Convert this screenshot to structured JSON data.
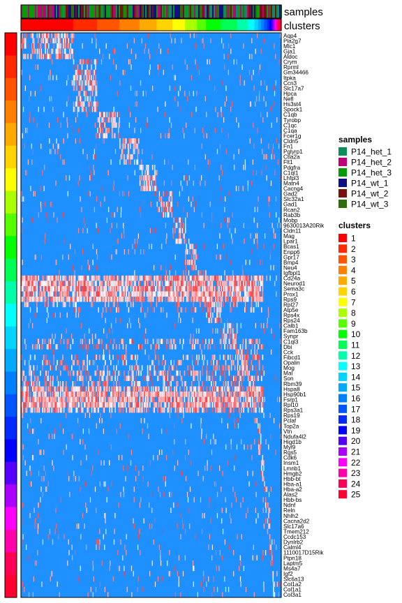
{
  "chart_data": {
    "type": "heatmap",
    "title": "",
    "xlabel": "",
    "ylabel": "",
    "annotations": {
      "samples_label": "samples",
      "clusters_label": "clusters"
    },
    "cluster_colors": [
      "#FF0000",
      "#FF2A00",
      "#FF5500",
      "#FF8000",
      "#FFAA00",
      "#FFD400",
      "#FFFF00",
      "#AAFF00",
      "#55FF00",
      "#00FF00",
      "#00FF55",
      "#00FFAA",
      "#00FFFF",
      "#00D4FF",
      "#00AAFF",
      "#0080FF",
      "#0055FF",
      "#002AFF",
      "#0000FF",
      "#5500FF",
      "#AA00FF",
      "#FF00FF",
      "#FF00AA",
      "#FF0055",
      "#FF0030"
    ],
    "sample_colors": {
      "P14_het_1": "#0E8C5C",
      "P14_het_2": "#C0007A",
      "P14_het_3": "#079C07",
      "P14_wt_1": "#0F0F86",
      "P14_wt_2": "#7A0F0F",
      "P14_wt_3": "#2F6B07"
    },
    "cluster_widths": [
      70,
      32,
      30,
      27,
      23,
      21,
      17,
      16,
      12,
      20,
      22,
      14,
      9,
      5,
      4,
      4,
      4,
      3,
      3,
      2,
      2,
      2,
      2,
      2,
      3
    ],
    "gene_groups": [
      [
        "Aqp4",
        "Pla2g7",
        "Mlc1",
        "Gja1",
        "Aldoc"
      ],
      [
        "Crym",
        "Rprml",
        "Gm34466",
        "Itpka",
        "Ccn3",
        "Slc17a7",
        "Hpca",
        "Nefl",
        "Hs3st4",
        "Spock1"
      ],
      [
        "C1qb",
        "Tyrobp",
        "C1qc",
        "C1qa",
        "Fcer1g"
      ],
      [
        "Cldn5",
        "Fn1",
        "Pglyrp1",
        "Ctla2a",
        "Flt1"
      ],
      [
        "Pdgfra",
        "C1ql1",
        "Lhfpl3",
        "Matn4",
        "Cacng4"
      ],
      [
        "Gad2",
        "Slc32a1",
        "Gad1",
        "Rcan2",
        "Rab3b"
      ],
      [
        "Mobp",
        "9630013A20Rik",
        "Cldn11",
        "Mag",
        "Lpar1"
      ],
      [
        "Bcas1",
        "Enpp6",
        "Gpr17",
        "Bmp4",
        "Neu4"
      ],
      [
        "Igfbpl1",
        "Cd24a",
        "Neurod1",
        "Sema3c",
        "Prox1"
      ],
      [
        "Rps9",
        "Rpl27",
        "Atp5e",
        "Rps4x",
        "Rps24"
      ],
      [
        "Calb1",
        "Fam163b",
        "Synpr",
        "C1ql3",
        "Dbi"
      ],
      [
        "Cck",
        "Fibcd1",
        "Opalin",
        "Mog",
        "Mal"
      ],
      [
        "Son",
        "Rbm39",
        "Hspa8",
        "Hsp90b1",
        "Fsrp1"
      ],
      [
        "Rpl10",
        "Rps3a1",
        "Rps19",
        "Pclaf",
        "Top2a"
      ],
      [
        "Vtn",
        "Ndufa4l2",
        "Higd1b",
        "Myl9",
        "Rgs5"
      ],
      [
        "Cdk6",
        "Insm1",
        "Lmnb1",
        "Hmgb2",
        "Hbb-bt"
      ],
      [
        "Hba-a1",
        "Hba-a2",
        "Alas2",
        "Hbb-bs",
        "Ndnf"
      ],
      [
        "Reln",
        "Nhlh2",
        "Cacna2d2",
        "Slc17a6",
        "Tmem212"
      ],
      [
        "Ccdc153",
        "Dynlrb2",
        "Calml4",
        "1110017D15Rik"
      ],
      [
        "Ptpn18",
        "Laptm5",
        "Ms4a7",
        "Igf2",
        "Slc6a13"
      ],
      [
        "Col1a2",
        "Col1a1",
        "Col3a1"
      ]
    ],
    "marker_groups": [
      [
        0,
        5
      ],
      [
        1,
        10
      ],
      [
        2,
        5
      ],
      [
        3,
        5
      ],
      [
        4,
        5
      ],
      [
        5,
        5
      ],
      [
        6,
        5
      ],
      [
        7,
        5
      ],
      [
        8,
        5
      ],
      [
        9,
        5
      ],
      [
        10,
        5
      ],
      [
        11,
        5
      ],
      [
        12,
        5
      ],
      [
        13,
        5
      ],
      [
        14,
        5
      ],
      [
        15,
        5
      ],
      [
        16,
        5
      ],
      [
        17,
        5
      ],
      [
        18,
        4
      ],
      [
        19,
        5
      ],
      [
        20,
        3
      ]
    ],
    "broad_rows": [
      [
        46,
        50,
        "h",
        0.85
      ],
      [
        51,
        52,
        "l",
        0.2
      ],
      [
        58,
        59,
        "l",
        0.3
      ],
      [
        61,
        63,
        "l",
        0.22
      ],
      [
        64,
        66,
        "l",
        0.35
      ],
      [
        67,
        71,
        "m",
        0.6
      ],
      [
        68,
        70,
        "h",
        0.6
      ]
    ],
    "legend": {
      "samples_title": "samples",
      "samples": [
        "P14_het_1",
        "P14_het_2",
        "P14_het_3",
        "P14_wt_1",
        "P14_wt_2",
        "P14_wt_3"
      ],
      "clusters_title": "clusters",
      "clusters": [
        "1",
        "2",
        "3",
        "4",
        "5",
        "6",
        "7",
        "8",
        "9",
        "10",
        "11",
        "12",
        "13",
        "14",
        "15",
        "16",
        "17",
        "18",
        "19",
        "20",
        "21",
        "22",
        "23",
        "24",
        "25"
      ]
    }
  }
}
